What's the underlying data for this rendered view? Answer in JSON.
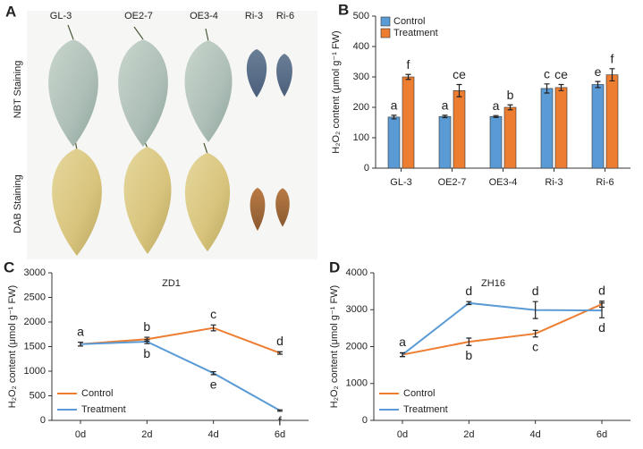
{
  "photo_panel": {
    "label": "A",
    "samples": [
      "GL-3",
      "OE2-7",
      "OE3-4",
      "Ri-3",
      "Ri-6"
    ],
    "stains": [
      "NBT Staining",
      "DAB Staining"
    ]
  },
  "chart_data": [
    {
      "panel": "B",
      "type": "bar",
      "ylabel": "H₂O₂ content (μmol g⁻¹ FW)",
      "categories": [
        "GL-3",
        "OE2-7",
        "OE3-4",
        "Ri-3",
        "Ri-6"
      ],
      "series": [
        {
          "name": "Control",
          "color": "#5b9bd5",
          "values": [
            168,
            170,
            170,
            262,
            275
          ],
          "errors": [
            6,
            4,
            3,
            15,
            10
          ],
          "letters": [
            "a",
            "a",
            "a",
            "c",
            "e"
          ]
        },
        {
          "name": "Treatment",
          "color": "#ed7d31",
          "values": [
            300,
            255,
            200,
            265,
            307
          ],
          "errors": [
            8,
            20,
            8,
            10,
            20
          ],
          "letters": [
            "f",
            "ce",
            "b",
            "ce",
            "f"
          ]
        }
      ],
      "ylim": [
        0,
        500
      ],
      "yticks": [
        0,
        100,
        200,
        300,
        400,
        500
      ],
      "legend": "upper left"
    },
    {
      "panel": "C",
      "type": "line",
      "title": "ZD1",
      "ylabel": "H₂O₂ content (μmol g⁻¹ FW)",
      "categories": [
        "0d",
        "2d",
        "4d",
        "6d"
      ],
      "series": [
        {
          "name": "Control",
          "color": "#ed7d31",
          "values": [
            1550,
            1650,
            1880,
            1370
          ],
          "errors": [
            40,
            40,
            60,
            25
          ],
          "letters": [
            "a",
            "b",
            "c",
            "d"
          ]
        },
        {
          "name": "Treatment",
          "color": "#5b9bd5",
          "values": [
            1550,
            1600,
            960,
            200
          ],
          "errors": [
            40,
            40,
            30,
            15
          ],
          "letters": [
            null,
            "b",
            "e",
            "f"
          ]
        }
      ],
      "ylim": [
        0,
        3000
      ],
      "yticks": [
        0,
        500,
        1000,
        1500,
        2000,
        2500,
        3000
      ],
      "legend": "lower left"
    },
    {
      "panel": "D",
      "type": "line",
      "title": "ZH16",
      "ylabel": "H₂O₂ content (μmol g⁻¹ FW)",
      "categories": [
        "0d",
        "2d",
        "4d",
        "6d"
      ],
      "series": [
        {
          "name": "Control",
          "color": "#ed7d31",
          "values": [
            1780,
            2130,
            2350,
            3150
          ],
          "errors": [
            50,
            100,
            90,
            80
          ],
          "letters": [
            "a",
            "b",
            "c",
            "d"
          ]
        },
        {
          "name": "Treatment",
          "color": "#5b9bd5",
          "values": [
            1780,
            3180,
            2990,
            2980
          ],
          "errors": [
            50,
            40,
            230,
            200
          ],
          "letters": [
            null,
            "d",
            "d",
            "d"
          ]
        }
      ],
      "ylim": [
        0,
        4000
      ],
      "yticks": [
        0,
        1000,
        2000,
        3000,
        4000
      ],
      "legend": "lower left"
    }
  ]
}
